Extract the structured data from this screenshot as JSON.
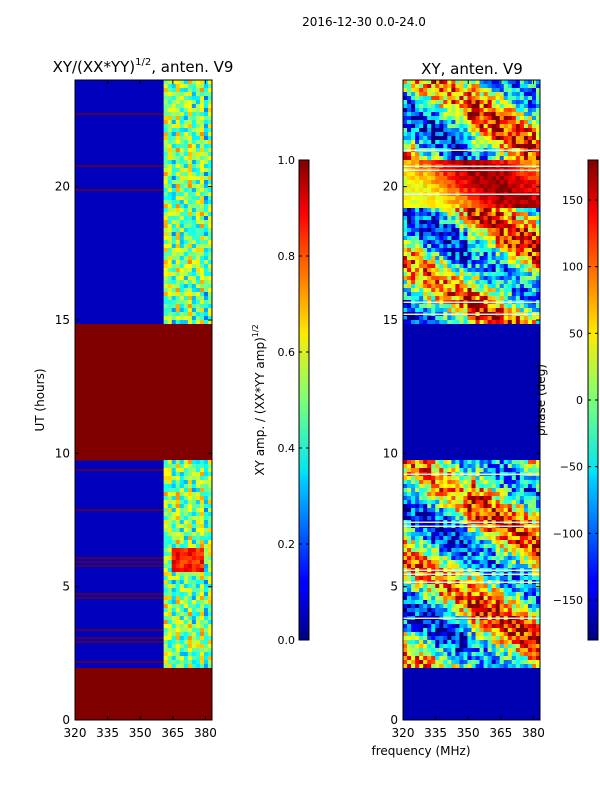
{
  "suptitle": "2016-12-30 0.0-24.0",
  "shared_xlabel": "frequency (MHz)",
  "chart_data": [
    {
      "type": "heatmap",
      "title_main": "XY/(XX*YY)",
      "title_exp": "1/2",
      "title_tail": ", anten. V9",
      "ylabel": "UT (hours)",
      "xlim": [
        320,
        383
      ],
      "ylim": [
        0,
        24
      ],
      "xticks": [
        320,
        335,
        350,
        365,
        380
      ],
      "yticks": [
        0,
        5,
        10,
        15,
        20
      ],
      "flagged_rows_hours": [
        [
          0,
          2
        ],
        [
          9.8,
          14.9
        ]
      ],
      "active_band_mhz": [
        360,
        382
      ],
      "colorbar": {
        "label_main": "XY amp. / (XX*YY amp)",
        "label_exp": "1/2",
        "range": [
          0.0,
          1.0
        ],
        "ticks": [
          "0.0",
          "0.2",
          "0.4",
          "0.6",
          "0.8",
          "1.0"
        ],
        "tick_values": [
          0.0,
          0.2,
          0.4,
          0.6,
          0.8,
          1.0
        ]
      }
    },
    {
      "type": "heatmap",
      "title_main": "XY, anten. V9",
      "ylabel": "",
      "xlim": [
        320,
        383
      ],
      "ylim": [
        0,
        24
      ],
      "xticks": [
        320,
        335,
        350,
        365,
        380
      ],
      "yticks": [
        0,
        5,
        10,
        15,
        20
      ],
      "flagged_rows_hours": [
        [
          0,
          2
        ],
        [
          9.8,
          14.9
        ]
      ],
      "colorbar": {
        "label_main": "phase (deg)",
        "range": [
          -180,
          180
        ],
        "ticks": [
          "−150",
          "−100",
          "−50",
          "0",
          "50",
          "100",
          "150"
        ],
        "tick_values": [
          -150,
          -100,
          -50,
          0,
          50,
          100,
          150
        ]
      }
    }
  ]
}
